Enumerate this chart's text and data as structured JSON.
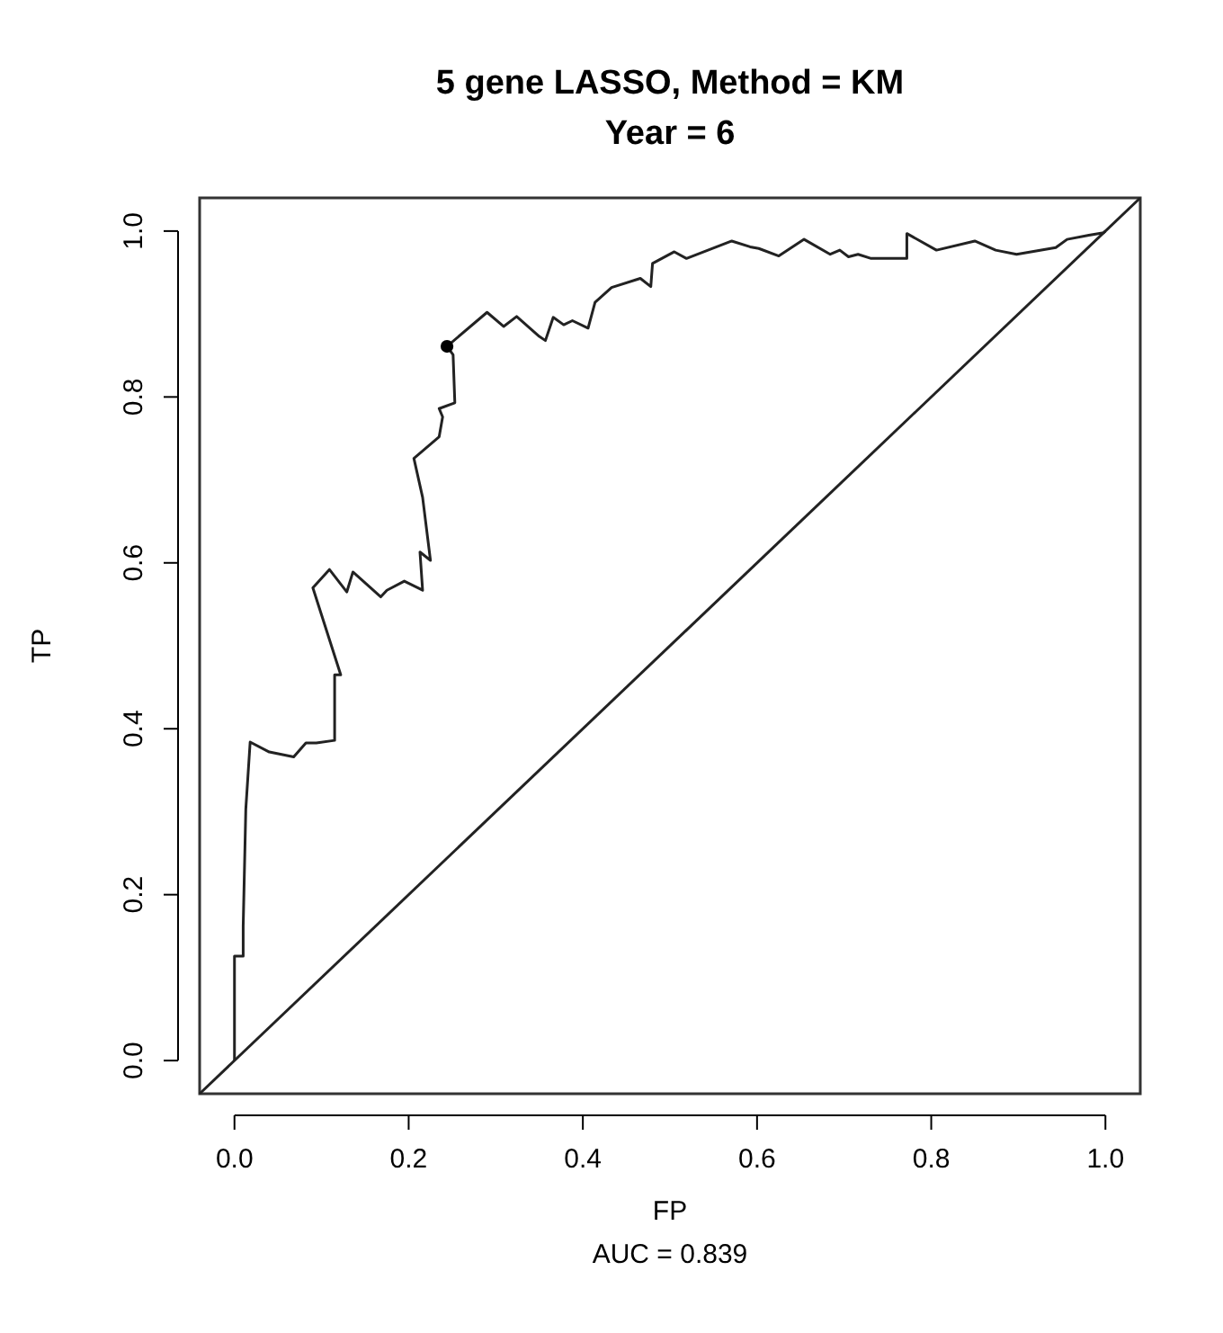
{
  "chart_data": {
    "type": "line",
    "title": "5 gene LASSO, Method = KM",
    "subtitle": "Year = 6",
    "xlabel": "FP",
    "ylabel": "TP",
    "annotations": [
      "AUC =  0.839"
    ],
    "xlim": [
      -0.04,
      1.04
    ],
    "ylim": [
      -0.04,
      1.04
    ],
    "xticks": [
      {
        "value": 0,
        "label": "0.0"
      },
      {
        "value": 0.2,
        "label": "0.2"
      },
      {
        "value": 0.4,
        "label": "0.4"
      },
      {
        "value": 0.6,
        "label": "0.6"
      },
      {
        "value": 0.8,
        "label": "0.8"
      },
      {
        "value": 1,
        "label": "1.0"
      }
    ],
    "yticks": [
      {
        "value": 0,
        "label": "0.0"
      },
      {
        "value": 0.2,
        "label": "0.2"
      },
      {
        "value": 0.4,
        "label": "0.4"
      },
      {
        "value": 0.6,
        "label": "0.6"
      },
      {
        "value": 0.8,
        "label": "0.8"
      },
      {
        "value": 1,
        "label": "1.0"
      }
    ],
    "grid": false,
    "line_style": "solid",
    "series": [
      {
        "color": "#222222",
        "x": [
          0,
          0,
          0.01,
          0.01,
          0.013,
          0.018,
          0.04,
          0.068,
          0.082,
          0.094,
          0.115,
          0.115,
          0.122,
          0.09,
          0.109,
          0.129,
          0.136,
          0.168,
          0.175,
          0.195,
          0.216,
          0.213,
          0.225,
          0.216,
          0.206,
          0.235,
          0.239,
          0.235,
          0.253,
          0.251,
          0.244,
          0.29,
          0.309,
          0.324,
          0.35,
          0.357,
          0.366,
          0.378,
          0.388,
          0.406,
          0.414,
          0.433,
          0.466,
          0.478,
          0.48,
          0.505,
          0.519,
          0.571,
          0.592,
          0.602,
          0.625,
          0.654,
          0.684,
          0.695,
          0.705,
          0.716,
          0.731,
          0.772,
          0.772,
          0.806,
          0.85,
          0.874,
          0.898,
          0.943,
          0.956,
          0.981,
          0.998,
          1
        ],
        "values": [
          0,
          0.126,
          0.126,
          0.162,
          0.303,
          0.384,
          0.372,
          0.366,
          0.383,
          0.383,
          0.386,
          0.465,
          0.465,
          0.57,
          0.592,
          0.565,
          0.589,
          0.559,
          0.567,
          0.578,
          0.567,
          0.613,
          0.603,
          0.679,
          0.726,
          0.752,
          0.776,
          0.786,
          0.793,
          0.851,
          0.861,
          0.902,
          0.885,
          0.897,
          0.873,
          0.868,
          0.896,
          0.887,
          0.892,
          0.883,
          0.914,
          0.932,
          0.943,
          0.933,
          0.961,
          0.975,
          0.967,
          0.988,
          0.981,
          0.979,
          0.97,
          0.99,
          0.972,
          0.977,
          0.969,
          0.972,
          0.967,
          0.967,
          0.997,
          0.977,
          0.988,
          0.977,
          0.972,
          0.98,
          0.99,
          0.995,
          0.998,
          1
        ]
      },
      {
        "type": "line",
        "color": "#222222",
        "x": [
          -0.04,
          1.04
        ],
        "values": [
          -0.04,
          1.04
        ]
      },
      {
        "type": "scatter",
        "color": "#000000",
        "marker": "circle",
        "x": [
          0.244
        ],
        "values": [
          0.861
        ]
      }
    ]
  }
}
